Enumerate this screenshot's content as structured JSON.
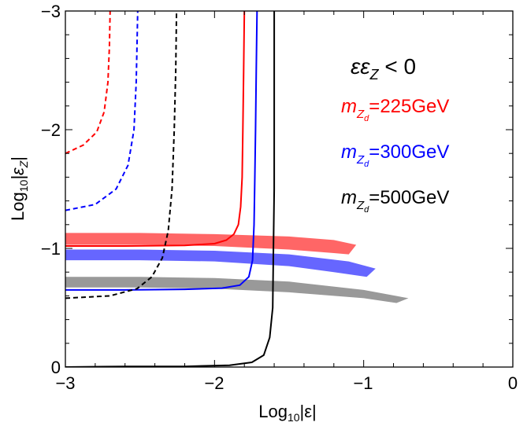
{
  "chart_data": {
    "type": "line",
    "title": "",
    "xlabel": "Log",
    "xlabel_sub": "10",
    "xlabel_arg": "|ε|",
    "ylabel": "Log",
    "ylabel_sub": "10",
    "ylabel_arg": "|ε",
    "ylabel_arg_sub": "Z",
    "ylabel_close": "|",
    "xlim": [
      -3,
      0
    ],
    "ylim": [
      0,
      -3
    ],
    "xticks": [
      -3,
      -2,
      -1,
      0
    ],
    "xtick_labels": [
      "−3",
      "−2",
      "−1",
      "0"
    ],
    "yticks": [
      0,
      -1,
      -2,
      -3
    ],
    "ytick_labels": [
      "0",
      "−1",
      "−2",
      "−3"
    ],
    "grid": false,
    "condition_label": {
      "text": "εε",
      "sub": "Z",
      "rest": " < 0",
      "color": "#000000"
    },
    "legend_position": "right",
    "legend": [
      {
        "m": "m",
        "sub": "Z",
        "subsub": "d",
        "value": "=225GeV",
        "color": "#ff0000"
      },
      {
        "m": "m",
        "sub": "Z",
        "subsub": "d",
        "value": "=300GeV",
        "color": "#0000ff"
      },
      {
        "m": "m",
        "sub": "Z",
        "subsub": "d",
        "value": "=500GeV",
        "color": "#000000"
      }
    ],
    "series": [
      {
        "color": "#ff0000",
        "style": "solid",
        "points": [
          [
            -3,
            -1.02
          ],
          [
            -2.6,
            -1.02
          ],
          [
            -2.2,
            -1.025
          ],
          [
            -2.0,
            -1.04
          ],
          [
            -1.92,
            -1.07
          ],
          [
            -1.87,
            -1.12
          ],
          [
            -1.84,
            -1.2
          ],
          [
            -1.825,
            -1.35
          ],
          [
            -1.815,
            -1.6
          ],
          [
            -1.81,
            -2.0
          ],
          [
            -1.805,
            -2.5
          ],
          [
            -1.8,
            -3.0
          ]
        ]
      },
      {
        "color": "#0000ff",
        "style": "solid",
        "points": [
          [
            -3,
            -0.65
          ],
          [
            -2.6,
            -0.65
          ],
          [
            -2.2,
            -0.655
          ],
          [
            -1.95,
            -0.665
          ],
          [
            -1.83,
            -0.69
          ],
          [
            -1.77,
            -0.76
          ],
          [
            -1.745,
            -0.9
          ],
          [
            -1.735,
            -1.2
          ],
          [
            -1.73,
            -1.6
          ],
          [
            -1.725,
            -2.0
          ],
          [
            -1.72,
            -2.5
          ],
          [
            -1.715,
            -3.0
          ]
        ]
      },
      {
        "color": "#000000",
        "style": "solid",
        "points": [
          [
            -3,
            0
          ],
          [
            -2.6,
            -0.005
          ],
          [
            -2.2,
            -0.005
          ],
          [
            -1.9,
            -0.015
          ],
          [
            -1.75,
            -0.04
          ],
          [
            -1.67,
            -0.1
          ],
          [
            -1.63,
            -0.25
          ],
          [
            -1.61,
            -0.5
          ],
          [
            -1.605,
            -1.0
          ],
          [
            -1.6,
            -1.5
          ],
          [
            -1.6,
            -2.0
          ],
          [
            -1.6,
            -2.5
          ],
          [
            -1.6,
            -3.0
          ]
        ]
      },
      {
        "color": "#ff0000",
        "style": "dashed",
        "points": [
          [
            -3,
            -1.8
          ],
          [
            -2.88,
            -1.87
          ],
          [
            -2.79,
            -1.98
          ],
          [
            -2.74,
            -2.15
          ],
          [
            -2.715,
            -2.4
          ],
          [
            -2.705,
            -2.7
          ],
          [
            -2.7,
            -3.0
          ]
        ]
      },
      {
        "color": "#0000ff",
        "style": "dashed",
        "points": [
          [
            -3,
            -1.32
          ],
          [
            -2.8,
            -1.37
          ],
          [
            -2.66,
            -1.5
          ],
          [
            -2.58,
            -1.7
          ],
          [
            -2.54,
            -2.0
          ],
          [
            -2.525,
            -2.4
          ],
          [
            -2.52,
            -2.7
          ],
          [
            -2.515,
            -3.0
          ]
        ]
      },
      {
        "color": "#000000",
        "style": "dashed",
        "points": [
          [
            -3,
            -0.58
          ],
          [
            -2.7,
            -0.6
          ],
          [
            -2.52,
            -0.66
          ],
          [
            -2.42,
            -0.76
          ],
          [
            -2.35,
            -0.92
          ],
          [
            -2.31,
            -1.15
          ],
          [
            -2.285,
            -1.5
          ],
          [
            -2.27,
            -2.0
          ],
          [
            -2.26,
            -2.5
          ],
          [
            -2.255,
            -3.0
          ]
        ]
      }
    ],
    "bands": [
      {
        "color": "#ff6666",
        "upper": [
          [
            -3,
            -1.13
          ],
          [
            -2.5,
            -1.13
          ],
          [
            -2.0,
            -1.12
          ],
          [
            -1.5,
            -1.1
          ],
          [
            -1.2,
            -1.07
          ],
          [
            -1.05,
            -1.03
          ]
        ],
        "lower": [
          [
            -3,
            -1.03
          ],
          [
            -2.5,
            -1.03
          ],
          [
            -2.0,
            -1.02
          ],
          [
            -1.5,
            -0.99
          ],
          [
            -1.2,
            -0.96
          ],
          [
            -1.1,
            -0.95
          ]
        ]
      },
      {
        "color": "#6666ff",
        "upper": [
          [
            -3,
            -0.99
          ],
          [
            -2.5,
            -0.99
          ],
          [
            -2.0,
            -0.98
          ],
          [
            -1.5,
            -0.95
          ],
          [
            -1.1,
            -0.89
          ],
          [
            -0.92,
            -0.83
          ]
        ],
        "lower": [
          [
            -3,
            -0.9
          ],
          [
            -2.5,
            -0.9
          ],
          [
            -2.0,
            -0.89
          ],
          [
            -1.5,
            -0.85
          ],
          [
            -1.2,
            -0.8
          ],
          [
            -0.98,
            -0.76
          ]
        ]
      },
      {
        "color": "#999999",
        "upper": [
          [
            -3,
            -0.76
          ],
          [
            -2.5,
            -0.76
          ],
          [
            -2.0,
            -0.75
          ],
          [
            -1.5,
            -0.72
          ],
          [
            -1.0,
            -0.65
          ],
          [
            -0.7,
            -0.58
          ]
        ],
        "lower": [
          [
            -3,
            -0.67
          ],
          [
            -2.5,
            -0.67
          ],
          [
            -2.0,
            -0.66
          ],
          [
            -1.5,
            -0.63
          ],
          [
            -1.0,
            -0.58
          ],
          [
            -0.78,
            -0.54
          ]
        ]
      }
    ]
  }
}
